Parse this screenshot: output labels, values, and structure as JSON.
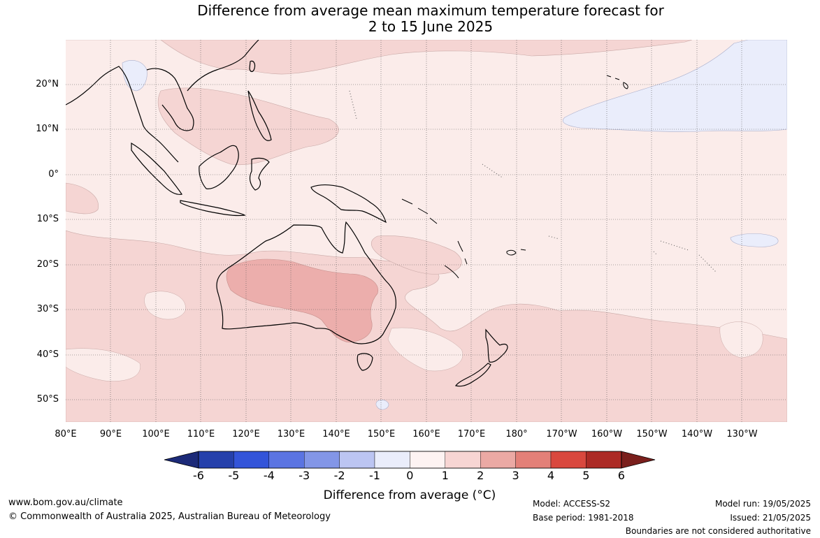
{
  "title": {
    "line1": "Difference from average mean maximum temperature forecast for",
    "line2": "2 to 15 June 2025"
  },
  "map": {
    "lat_labels": [
      "20°N",
      "10°N",
      "0°",
      "10°S",
      "20°S",
      "30°S",
      "40°S",
      "50°S"
    ],
    "lon_labels": [
      "80°E",
      "90°E",
      "100°E",
      "110°E",
      "120°E",
      "130°E",
      "140°E",
      "150°E",
      "160°E",
      "170°E",
      "180°",
      "170°W",
      "160°W",
      "150°W",
      "140°W",
      "130°W"
    ],
    "background_color": "#fbecea",
    "region_colors": {
      "anomaly_0_to_1": "#fbecea",
      "anomaly_1_to_2": "#f5d5d3",
      "anomaly_2_to_3": "#ecaeac",
      "anomaly_minus1_to_0": "#eaedfb"
    }
  },
  "colorbar": {
    "ticks": [
      "-6",
      "-5",
      "-4",
      "-3",
      "-2",
      "-1",
      "0",
      "1",
      "2",
      "3",
      "4",
      "5",
      "6"
    ],
    "colors": [
      "#1c2a78",
      "#2540ab",
      "#3354d9",
      "#5b74e2",
      "#8396e7",
      "#bcc5f2",
      "#eaedfb",
      "#fdf3f2",
      "#f7d5d3",
      "#eba9a4",
      "#e38078",
      "#d9483e",
      "#ac2a25",
      "#7a1f1c"
    ],
    "label": "Difference from average (°C)"
  },
  "footer": {
    "url": "www.bom.gov.au/climate",
    "copyright": "© Commonwealth of Australia 2025, Australian Bureau of Meteorology",
    "model": "Model: ACCESS-S2",
    "base_period": "Base period: 1981-2018",
    "model_run": "Model run: 19/05/2025",
    "issued": "Issued: 21/05/2025",
    "disclaimer": "Boundaries are not considered authoritative"
  }
}
